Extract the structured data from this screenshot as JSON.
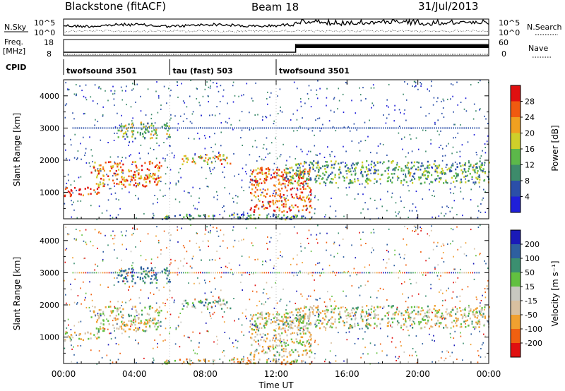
{
  "header": {
    "radar_title": "Blackstone  (fitACF)",
    "beam_title": "Beam 18",
    "date": "31/Jul/2013"
  },
  "noise_panel": {
    "left_label": "N.Sky",
    "right_label": "N.Search",
    "left_ticks": [
      "10^5",
      "10^0"
    ],
    "right_ticks": [
      "10^5",
      "10^0"
    ]
  },
  "freq_panel": {
    "left_label_1": "Freq.",
    "left_label_2": "[MHz]",
    "right_label": "Nave",
    "left_ticks": [
      "18",
      "8"
    ],
    "right_ticks": [
      "60",
      "0"
    ]
  },
  "cpid": {
    "label": "CPID",
    "segments": [
      {
        "name": "twofsound 3501",
        "start_h": 0,
        "end_h": 6
      },
      {
        "name": "tau (fast) 503",
        "start_h": 6,
        "end_h": 12
      },
      {
        "name": "twofsound 3501",
        "start_h": 12,
        "end_h": 24
      }
    ]
  },
  "x_axis": {
    "label": "Time UT",
    "ticks": [
      "00:00",
      "04:00",
      "08:00",
      "12:00",
      "16:00",
      "20:00",
      "00:00"
    ],
    "range_h": [
      0,
      24
    ]
  },
  "power_panel": {
    "ylabel": "Slant Range [km]",
    "yticks": [
      "4000",
      "3000",
      "2000",
      "1000"
    ],
    "colorbar_label": "Power [dB]",
    "colorbar_ticks": [
      "28",
      "24",
      "20",
      "16",
      "12",
      "8",
      "4"
    ],
    "colors": [
      "#1f1fd9",
      "#2b4fa8",
      "#3d8b6b",
      "#5cb84a",
      "#cfcf2a",
      "#f0a020",
      "#f05a10",
      "#e01010"
    ]
  },
  "velocity_panel": {
    "ylabel": "Slant Range [km]",
    "yticks": [
      "4000",
      "3000",
      "2000",
      "1000"
    ],
    "colorbar_label": "Velocity [m s⁻¹]",
    "colorbar_ticks": [
      "200",
      "100",
      "50",
      "15",
      "-15",
      "-50",
      "-100",
      "-200"
    ],
    "colors": [
      "#1a1ab8",
      "#2e5fa0",
      "#3b8f70",
      "#62c040",
      "#c8c8c0",
      "#d8c0a0",
      "#f0a030",
      "#f06010",
      "#e01010"
    ]
  },
  "chart_data": {
    "type": "heatmap",
    "title": "Blackstone (fitACF) Beam 18 31/Jul/2013",
    "xlabel": "Time UT",
    "ylabel": "Slant Range [km]",
    "x_range_h": [
      0,
      24
    ],
    "y_range_km": [
      180,
      4500
    ],
    "panels": [
      {
        "name": "Power [dB]",
        "zlim": [
          0,
          30
        ]
      },
      {
        "name": "Velocity [m s⁻¹]",
        "zlim": [
          -200,
          200
        ]
      }
    ],
    "echo_bands": [
      {
        "t0": 0.0,
        "t1": 2.0,
        "r0": 900,
        "r1": 1200,
        "power_db": 28,
        "velocity": -10
      },
      {
        "t0": 1.5,
        "t1": 5.5,
        "r0": 1200,
        "r1": 2000,
        "power_db": 22,
        "velocity": -15
      },
      {
        "t0": 3.0,
        "t1": 6.0,
        "r0": 2700,
        "r1": 3200,
        "power_db": 14,
        "velocity": 120
      },
      {
        "t0": 6.5,
        "t1": 9.5,
        "r0": 1900,
        "r1": 2200,
        "power_db": 20,
        "velocity": 40
      },
      {
        "t0": 10.5,
        "t1": 14.0,
        "r0": 400,
        "r1": 1800,
        "power_db": 24,
        "velocity": -20
      },
      {
        "t0": 12.5,
        "t1": 24.0,
        "r0": 1300,
        "r1": 2000,
        "power_db": 12,
        "velocity": -10
      },
      {
        "t0": 5.5,
        "t1": 14.0,
        "r0": 180,
        "r1": 350,
        "power_db": 10,
        "velocity": -40
      }
    ]
  }
}
